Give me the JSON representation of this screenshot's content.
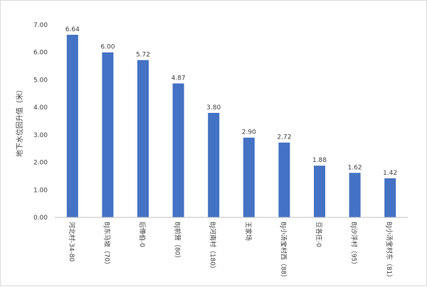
{
  "chart_data": {
    "type": "bar",
    "title": "",
    "xlabel": "",
    "ylabel": "地下水位回升值（米）",
    "ylim": [
      0,
      7
    ],
    "ytick_step": 1,
    "ytick_labels": [
      "0.00",
      "1.00",
      "2.00",
      "3.00",
      "4.00",
      "5.00",
      "6.00",
      "7.00"
    ],
    "grid": false,
    "categories": [
      "河北村-34-80",
      "BJ东马坡（70）",
      "后俸伯-0",
      "BJ前营（80）",
      "BJ河南村（180）",
      "王家场",
      "BJ小汤宝村西（88）",
      "豆各庄-0",
      "BJ沙浮村（95）",
      "BJ小汤宝村东（81）"
    ],
    "values": [
      6.64,
      6.0,
      5.72,
      4.87,
      3.8,
      2.9,
      2.72,
      1.88,
      1.62,
      1.42
    ],
    "value_labels": [
      "6.64",
      "6.00",
      "5.72",
      "4.87",
      "3.80",
      "2.90",
      "2.72",
      "1.88",
      "1.62",
      "1.42"
    ],
    "bar_color": "#4472c4",
    "axis_color": "#bfbfbf",
    "text_color": "#404040"
  }
}
